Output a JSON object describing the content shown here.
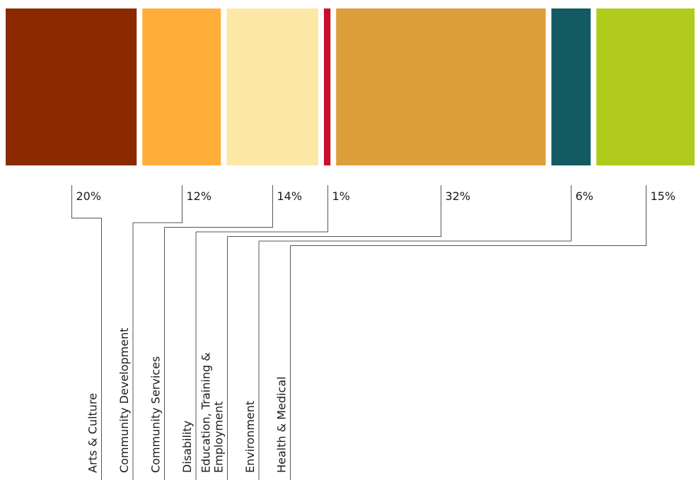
{
  "chart_data": {
    "type": "bar",
    "layout": "proportional-stacked",
    "categories": [
      "Arts & Culture",
      "Community Development",
      "Community Services",
      "Disability",
      "Education, Training & Employment",
      "Environment",
      "Health & Medical"
    ],
    "category_lines": [
      [
        "Arts & Culture"
      ],
      [
        "Community Development"
      ],
      [
        "Community Services"
      ],
      [
        "Disability"
      ],
      [
        "Education, Training &",
        "Employment"
      ],
      [
        "Environment"
      ],
      [
        "Health & Medical"
      ]
    ],
    "values": [
      20,
      12,
      14,
      1,
      32,
      6,
      15
    ],
    "value_labels": [
      "20%",
      "12%",
      "14%",
      "1%",
      "32%",
      "6%",
      "15%"
    ],
    "colors": [
      "#8b2a00",
      "#ffae3c",
      "#fde8a8",
      "#c8102e",
      "#dd9f3a",
      "#135a63",
      "#b1cb1c"
    ],
    "title": "",
    "xlabel": "",
    "ylabel": ""
  }
}
